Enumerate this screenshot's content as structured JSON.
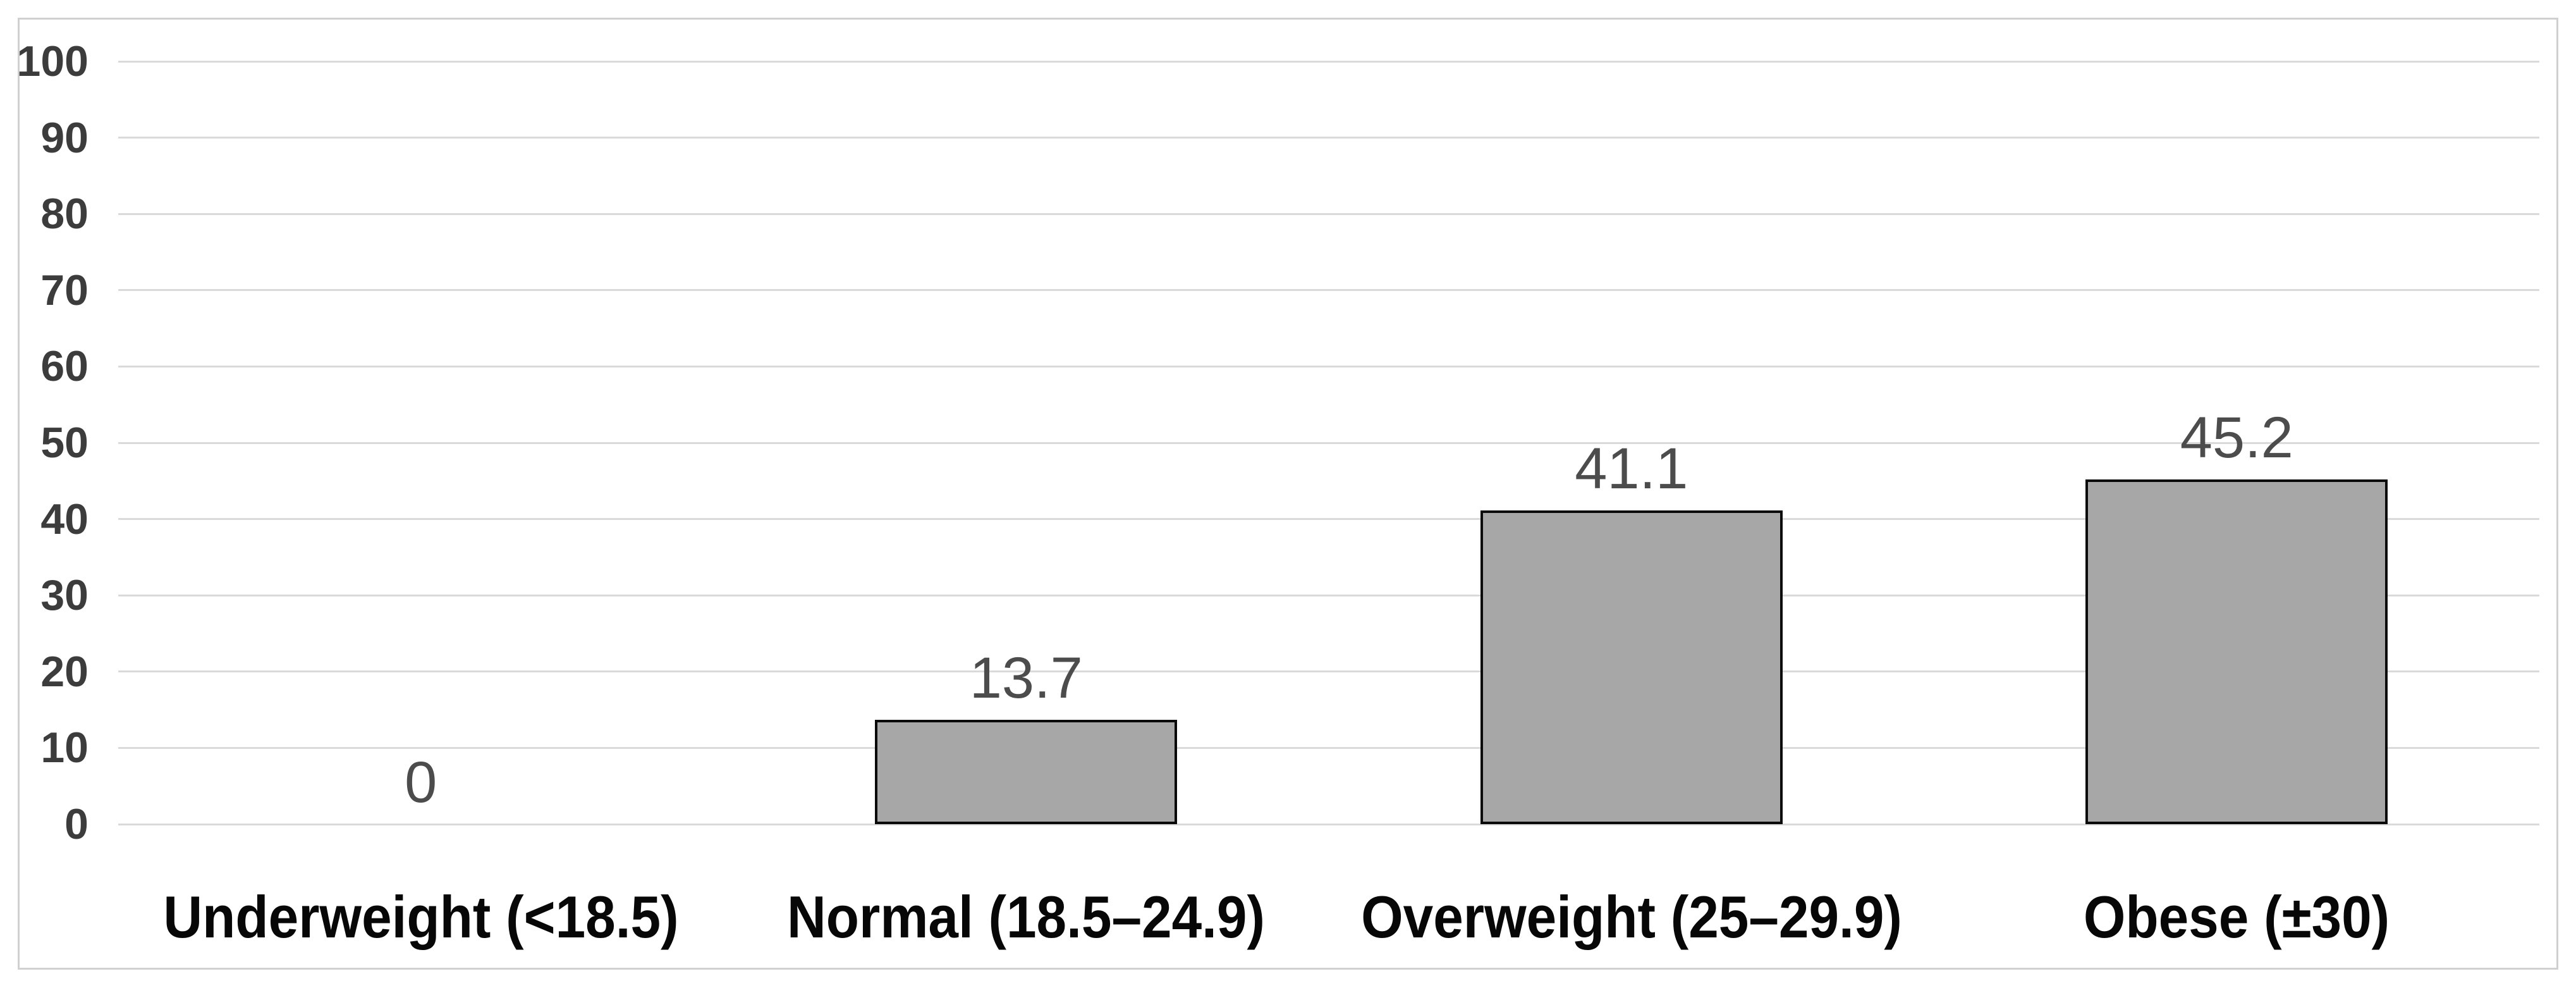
{
  "chart_data": {
    "type": "bar",
    "title": "",
    "xlabel": "",
    "ylabel": "",
    "categories": [
      "Underweight (<18.5)",
      "Normal (18.5–24.9)",
      "Overweight (25–29.9)",
      "Obese (±30)"
    ],
    "values": [
      0,
      13.7,
      41.1,
      45.2
    ],
    "value_labels": [
      "0",
      "13.7",
      "41.1",
      "45.2"
    ],
    "ylim": [
      0,
      100
    ],
    "ytick_step": 10,
    "yticks": [
      0,
      10,
      20,
      30,
      40,
      50,
      60,
      70,
      80,
      90,
      100
    ],
    "grid": true,
    "legend_position": "none",
    "colors": {
      "background": "#ffffff",
      "bar_fill": "#a7a7a7",
      "bar_border": "#0a0a0a",
      "gridline": "#dadada",
      "outer_frame": "#d0d0d0",
      "ytick_label": "#3c3c3c",
      "value_label": "#4c4c4c",
      "category_label": "#070707"
    }
  }
}
